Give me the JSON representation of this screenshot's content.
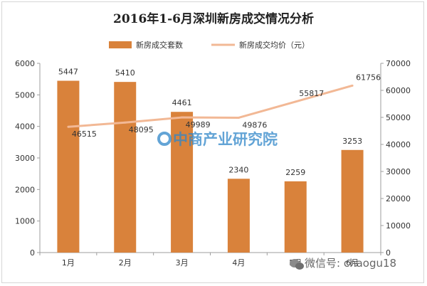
{
  "chart_data": {
    "type": "bar",
    "title": "2016年1-6月深圳新房成交情况分析",
    "categories": [
      "1月",
      "2月",
      "3月",
      "4月",
      "5月",
      "6月"
    ],
    "series": [
      {
        "name": "新房成交套数",
        "kind": "bar",
        "axis": "left",
        "values": [
          5447,
          5410,
          4461,
          2340,
          2259,
          3253
        ],
        "labels": [
          "5447",
          "5410",
          "4461",
          "2340",
          "2259",
          "3253"
        ]
      },
      {
        "name": "新房成交均价（元）",
        "kind": "line",
        "axis": "right",
        "values": [
          46515,
          48095,
          49989,
          49876,
          55817,
          61756
        ],
        "labels": [
          "46515",
          "48095",
          "49989",
          "49876",
          "55817",
          "61756"
        ]
      }
    ],
    "y_left": {
      "min": 0,
      "max": 6000,
      "ticks": [
        "0",
        "1000",
        "2000",
        "3000",
        "4000",
        "5000",
        "6000"
      ]
    },
    "y_right": {
      "min": 0,
      "max": 70000,
      "ticks": [
        "0",
        "10000",
        "20000",
        "30000",
        "40000",
        "50000",
        "60000",
        "70000"
      ]
    },
    "legend_position": "top",
    "grid": false
  },
  "colors": {
    "bar": "#d9823b",
    "line": "#f2b895",
    "axis": "#9e9e9e",
    "text": "#333333",
    "watermark": "#2f86c9"
  },
  "watermark": {
    "text": "中商产业研究院",
    "footer": "微信号: chaogu18"
  }
}
